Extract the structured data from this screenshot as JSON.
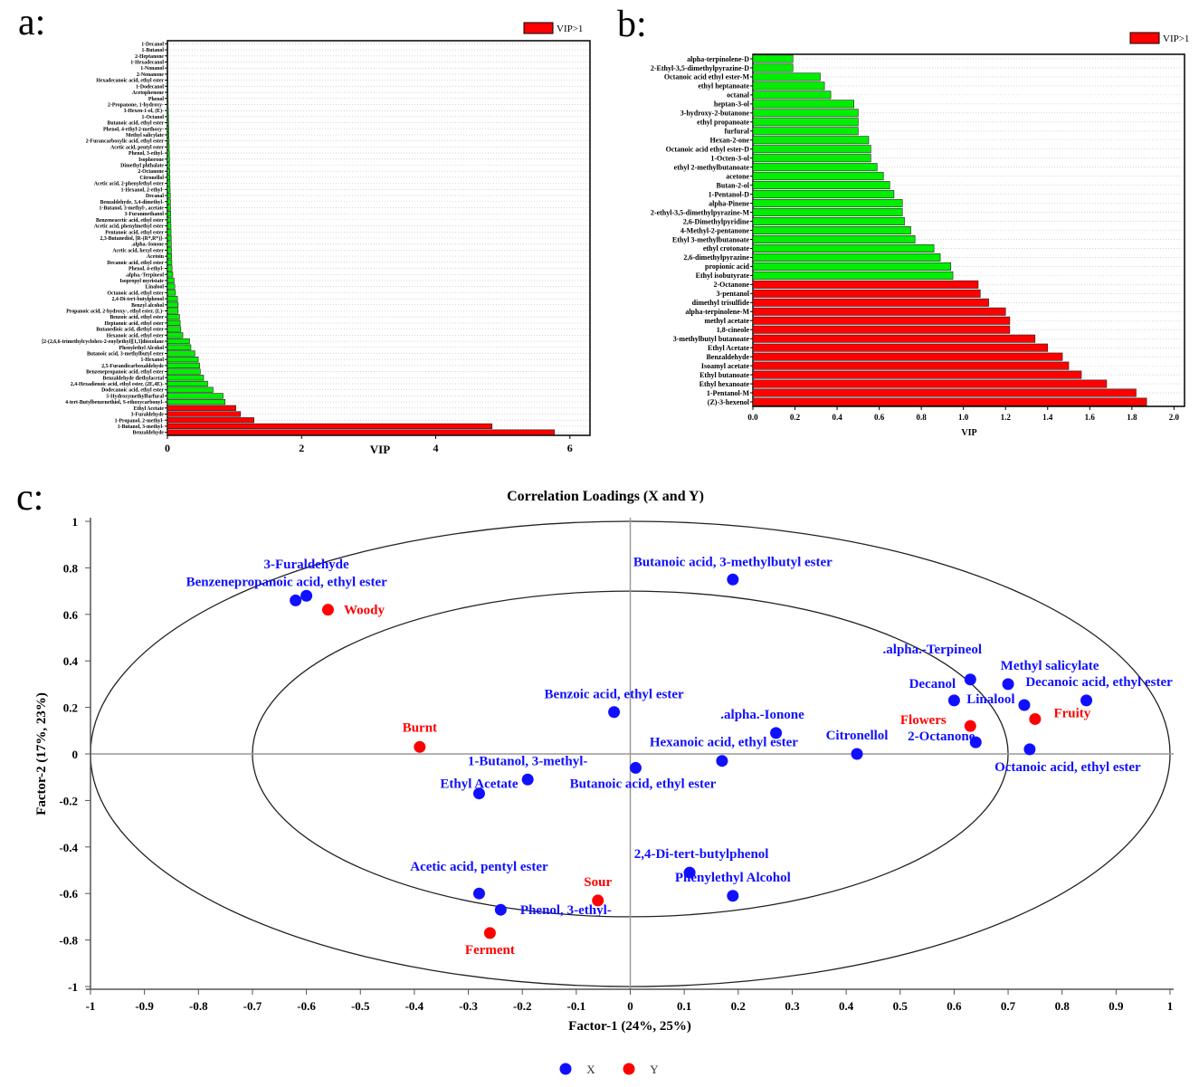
{
  "panels": {
    "a": "a:",
    "b": "b:",
    "c": "c:"
  },
  "colors": {
    "vip_gt1": "#ff0000",
    "vip_le1": "#00ee00",
    "x_group": "#1010ff",
    "y_group": "#ff0000"
  },
  "chart_data": [
    {
      "type": "bar",
      "orientation": "horizontal",
      "panel": "a",
      "xlabel": "VIP",
      "legend": {
        "label": "VIP>1",
        "placement": "top-right"
      },
      "xlim": [
        0,
        6.3
      ],
      "xticks": [
        0,
        2,
        4,
        6
      ],
      "categories": [
        "1-Decanol",
        "1-Butanol",
        "2-Heptanone",
        "1-Hexadecanol",
        "1-Nonanol",
        "2-Nonanone",
        "Hexadecanoic acid, ethyl ester",
        "1-Dodecanol",
        "Acetophenone",
        "Phenol",
        "2-Propanone, 1-hydroxy-",
        "3-Hexen-1-ol, (E)-",
        "1-Octanol",
        "Butanoic acid, ethyl ester",
        "Phenol, 4-ethyl-2-methoxy-",
        "Methyl salicylate",
        "2-Furancarboxylic acid, ethyl ester",
        "Acetic acid, pentyl ester",
        "Phenol, 3-ethyl-",
        "Isophorone",
        "Dimethyl phthalate",
        "2-Octanone",
        "Citronellol",
        "Acetic acid, 2-phenylethyl ester",
        "1-Hexanol, 2-ethyl-",
        "Decanal",
        "Benzaldehyde, 3,4-dimethyl-",
        "1-Butanol, 3-methyl-, acetate",
        "3-Furanmethanol",
        "Benzeneacetic acid, ethyl ester",
        "Acetic acid, phenylmethyl ester",
        "Pentanoic acid, ethyl ester",
        "2,3-Butanediol, [R-(R*,R*)]-",
        ".alpha.-Ionone",
        "Acetic acid, hexyl ester",
        "Acetoin",
        "Decanoic acid, ethyl ester",
        "Phenol, 4-ethyl-",
        ".alpha.-Terpineol",
        "Isopropyl myristate",
        "Linalool",
        "Octanoic acid, ethyl ester",
        "2,4-Di-tert-butylphenol",
        "Benzyl alcohol",
        "Propanoic acid, 2-hydroxy-, ethyl ester, (L)-",
        "Benzoic acid, ethyl ester",
        "Heptanoic acid, ethyl ester",
        "Butanedioic acid, diethyl ester",
        "Hexanoic acid, ethyl ester",
        "[2-(2,6,6-trimethylcyclohex-2-enyl)ethyl][1,3]dioxolane",
        "Phenylethyl Alcohol",
        "Butanoic acid, 3-methylbutyl ester",
        "1-Hexanol",
        "2,5-Furandicarboxaldehyde",
        "Benzenepropanoic acid, ethyl ester",
        "Benzaldehyde diethylacetal",
        "2,4-Hexadienoic acid, ethyl ester, (2E,4E)-",
        "Dodecanoic acid, ethyl ester",
        "5-Hydroxymethylfurfural",
        "4-tert-Butylbenzenethiol, S-ethoxycarbonyl-",
        "Ethyl Acetate",
        "3-Furaldehyde",
        "1-Propanol, 2-methyl-",
        "1-Butanol, 3-methyl-",
        "Benzaldehyde"
      ],
      "values": [
        0.002,
        0.003,
        0.004,
        0.005,
        0.006,
        0.007,
        0.008,
        0.009,
        0.01,
        0.011,
        0.013,
        0.015,
        0.017,
        0.019,
        0.021,
        0.023,
        0.025,
        0.027,
        0.029,
        0.031,
        0.033,
        0.035,
        0.037,
        0.039,
        0.041,
        0.043,
        0.045,
        0.047,
        0.049,
        0.051,
        0.053,
        0.055,
        0.057,
        0.059,
        0.061,
        0.063,
        0.066,
        0.07,
        0.08,
        0.1,
        0.11,
        0.12,
        0.15,
        0.16,
        0.16,
        0.18,
        0.19,
        0.2,
        0.23,
        0.33,
        0.35,
        0.41,
        0.46,
        0.48,
        0.49,
        0.54,
        0.6,
        0.68,
        0.83,
        0.86,
        1.02,
        1.09,
        1.29,
        4.84,
        5.77
      ]
    },
    {
      "type": "bar",
      "orientation": "horizontal",
      "panel": "b",
      "xlabel": "VIP",
      "legend": {
        "label": "VIP>1",
        "placement": "top-right"
      },
      "xlim": [
        0,
        2.05
      ],
      "xticks": [
        "0.0",
        "0.2",
        "0.4",
        "0.6",
        "0.8",
        "1.0",
        "1.2",
        "1.4",
        "1.6",
        "1.8",
        "2.0"
      ],
      "categories": [
        "alpha-terpinolene-D",
        "2-Ethyl-3,5-dimethylpyrazine-D",
        "Octanoic acid ethyl ester-M",
        "ethyl heptanoate",
        "octanal",
        "heptan-3-ol",
        "3-hydroxy-2-butanone",
        "ethyl propanoate",
        "furfural",
        "Hexan-2-one",
        "Octanoic acid ethyl ester-D",
        "1-Octen-3-ol",
        "ethyl 2-methylbutanoate",
        "acetone",
        "Butan-2-ol",
        "1-Pentanol-D",
        "alpha-Pinene",
        "2-ethyl-3,5-dimethylpyrazine-M",
        "2,6-Dimethylpyridine",
        "4-Methyl-2-pentanone",
        "Ethyl 3-methylbutanoate",
        "ethyl crotonate",
        "2,6-dimethylpyrazine",
        "propionic acid",
        "Ethyl isobutyrate",
        "2-Octanone",
        "3-pentanol",
        "dimethyl trisulfide",
        "alpha-terpinolene-M",
        "methyl acetate",
        "1,8-cineole",
        "3-methylbutyl butanoate",
        "Ethyl Acetate",
        "Benzaldehyde",
        "Isoamyl acetate",
        "Ethyl butanoate",
        "Ethyl hexanoate",
        "1-Pentanol-M",
        "(Z)-3-hexenol"
      ],
      "values": [
        0.19,
        0.19,
        0.32,
        0.34,
        0.37,
        0.48,
        0.5,
        0.5,
        0.5,
        0.55,
        0.56,
        0.56,
        0.59,
        0.62,
        0.65,
        0.67,
        0.71,
        0.71,
        0.72,
        0.75,
        0.77,
        0.86,
        0.89,
        0.94,
        0.95,
        1.07,
        1.08,
        1.12,
        1.2,
        1.22,
        1.22,
        1.34,
        1.4,
        1.47,
        1.5,
        1.56,
        1.68,
        1.82,
        1.87
      ]
    },
    {
      "type": "scatter",
      "panel": "c",
      "title": "Correlation Loadings (X and Y)",
      "xlabel": "Factor-1 (24%, 25%)",
      "ylabel": "Factor-2 (17%, 23%)",
      "xlim": [
        -1,
        1
      ],
      "ylim": [
        -1,
        1
      ],
      "xticks": [
        "-1",
        "-0.9",
        "-0.8",
        "-0.7",
        "-0.6",
        "-0.5",
        "-0.4",
        "-0.3",
        "-0.2",
        "-0.1",
        "0",
        "0.1",
        "0.2",
        "0.3",
        "0.4",
        "0.5",
        "0.6",
        "0.7",
        "0.8",
        "0.9",
        "1"
      ],
      "yticks": [
        "1",
        "0.8",
        "0.6",
        "0.4",
        "0.2",
        "0",
        "-0.2",
        "-0.4",
        "-0.6",
        "-0.8",
        "-1"
      ],
      "ellipses_radius": [
        1.0,
        0.7
      ],
      "legend": [
        {
          "label": "X",
          "color": "#1010ff"
        },
        {
          "label": "Y",
          "color": "#ff0000"
        }
      ],
      "points": [
        {
          "name": "Benzenepropanoic acid, ethyl ester",
          "x": -0.62,
          "y": 0.66,
          "group": "X"
        },
        {
          "name": "3-Furaldehyde",
          "x": -0.6,
          "y": 0.68,
          "group": "X"
        },
        {
          "name": "Woody",
          "x": -0.56,
          "y": 0.62,
          "group": "Y"
        },
        {
          "name": "Butanoic acid, 3-methylbutyl ester",
          "x": 0.19,
          "y": 0.75,
          "group": "X"
        },
        {
          "name": ".alpha.-Terpineol",
          "x": 0.63,
          "y": 0.32,
          "group": "X"
        },
        {
          "name": "Methyl salicylate",
          "x": 0.7,
          "y": 0.3,
          "group": "X"
        },
        {
          "name": "Decanol",
          "x": 0.6,
          "y": 0.23,
          "group": "X"
        },
        {
          "name": "Decanoic acid, ethyl ester",
          "x": 0.845,
          "y": 0.23,
          "group": "X"
        },
        {
          "name": "Linalool",
          "x": 0.73,
          "y": 0.21,
          "group": "X"
        },
        {
          "name": "Fruity",
          "x": 0.75,
          "y": 0.15,
          "group": "Y"
        },
        {
          "name": "Flowers",
          "x": 0.63,
          "y": 0.12,
          "group": "Y"
        },
        {
          "name": "2-Octanone",
          "x": 0.64,
          "y": 0.05,
          "group": "X"
        },
        {
          "name": "Octanoic acid, ethyl ester",
          "x": 0.74,
          "y": 0.02,
          "group": "X"
        },
        {
          "name": "Benzoic acid, ethyl ester",
          "x": -0.03,
          "y": 0.18,
          "group": "X"
        },
        {
          "name": ".alpha.-Ionone",
          "x": 0.27,
          "y": 0.09,
          "group": "X"
        },
        {
          "name": "Citronellol",
          "x": 0.42,
          "y": 0.0,
          "group": "X"
        },
        {
          "name": "Hexanoic acid, ethyl ester",
          "x": 0.17,
          "y": -0.03,
          "group": "X"
        },
        {
          "name": "Butanoic acid, ethyl ester",
          "x": 0.01,
          "y": -0.06,
          "group": "X"
        },
        {
          "name": "1-Butanol, 3-methyl-",
          "x": -0.19,
          "y": -0.11,
          "group": "X"
        },
        {
          "name": "Ethyl Acetate",
          "x": -0.28,
          "y": -0.17,
          "group": "X"
        },
        {
          "name": "Burnt",
          "x": -0.39,
          "y": 0.03,
          "group": "Y"
        },
        {
          "name": "2,4-Di-tert-butylphenol",
          "x": 0.11,
          "y": -0.51,
          "group": "X"
        },
        {
          "name": "Phenylethyl Alcohol",
          "x": 0.19,
          "y": -0.61,
          "group": "X"
        },
        {
          "name": "Sour",
          "x": -0.06,
          "y": -0.63,
          "group": "Y"
        },
        {
          "name": "Acetic acid, pentyl ester",
          "x": -0.28,
          "y": -0.6,
          "group": "X"
        },
        {
          "name": "Phenol, 3-ethyl-",
          "x": -0.24,
          "y": -0.67,
          "group": "X"
        },
        {
          "name": "Ferment",
          "x": -0.26,
          "y": -0.77,
          "group": "Y"
        }
      ]
    }
  ]
}
